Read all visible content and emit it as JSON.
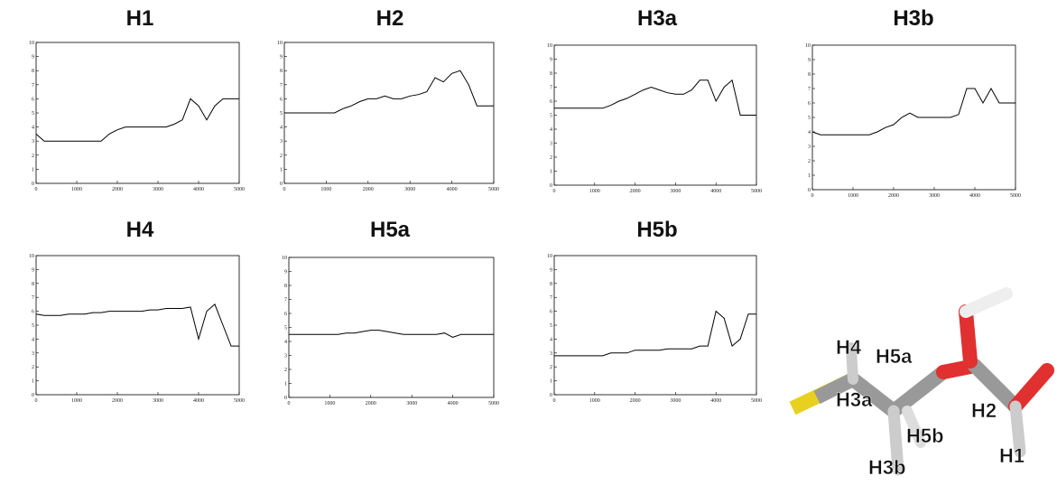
{
  "chart_data": [
    {
      "type": "line",
      "title": "H1",
      "x": [
        0,
        200,
        400,
        600,
        800,
        1000,
        1200,
        1400,
        1600,
        1800,
        2000,
        2200,
        2400,
        2600,
        2800,
        3000,
        3200,
        3400,
        3600,
        3800,
        4000,
        4200,
        4400,
        4600,
        4800,
        5000
      ],
      "values": [
        3.5,
        3,
        3,
        3,
        3,
        3,
        3,
        3,
        3,
        3.5,
        3.8,
        4,
        4,
        4,
        4,
        4,
        4,
        4.2,
        4.5,
        6,
        5.5,
        4.5,
        5.5,
        6,
        6,
        6
      ],
      "color": "#000000",
      "xlim": [
        0,
        5000
      ],
      "xticks": [
        0,
        1000,
        2000,
        3000,
        4000,
        5000
      ],
      "ylim": [
        0,
        10
      ],
      "yticks": [
        0,
        1,
        2,
        3,
        4,
        5,
        6,
        7,
        8,
        9,
        10
      ]
    },
    {
      "type": "line",
      "title": "H2",
      "x": [
        0,
        200,
        400,
        600,
        800,
        1000,
        1200,
        1400,
        1600,
        1800,
        2000,
        2200,
        2400,
        2600,
        2800,
        3000,
        3200,
        3400,
        3600,
        3800,
        4000,
        4200,
        4400,
        4600,
        4800,
        5000
      ],
      "values": [
        5,
        5,
        5,
        5,
        5,
        5,
        5,
        5.3,
        5.5,
        5.8,
        6,
        6,
        6.2,
        6,
        6,
        6.2,
        6.3,
        6.5,
        7.5,
        7.2,
        7.8,
        8,
        7,
        5.5,
        5.5,
        5.5
      ],
      "color": "#000000",
      "xlim": [
        0,
        5000
      ],
      "xticks": [
        0,
        1000,
        2000,
        3000,
        4000,
        5000
      ],
      "ylim": [
        0,
        10
      ],
      "yticks": [
        0,
        1,
        2,
        3,
        4,
        5,
        6,
        7,
        8,
        9,
        10
      ]
    },
    {
      "type": "line",
      "title": "H3a",
      "x": [
        0,
        200,
        400,
        600,
        800,
        1000,
        1200,
        1400,
        1600,
        1800,
        2000,
        2200,
        2400,
        2600,
        2800,
        3000,
        3200,
        3400,
        3600,
        3800,
        4000,
        4200,
        4400,
        4600,
        4800,
        5000
      ],
      "values": [
        5.5,
        5.5,
        5.5,
        5.5,
        5.5,
        5.5,
        5.5,
        5.7,
        6,
        6.2,
        6.5,
        6.8,
        7,
        6.8,
        6.6,
        6.5,
        6.5,
        6.8,
        7.5,
        7.5,
        6,
        7,
        7.5,
        5,
        5,
        5
      ],
      "color": "#000000",
      "xlim": [
        0,
        5000
      ],
      "xticks": [
        0,
        1000,
        2000,
        3000,
        4000,
        5000
      ],
      "ylim": [
        0,
        10
      ],
      "yticks": [
        0,
        1,
        2,
        3,
        4,
        5,
        6,
        7,
        8,
        9,
        10
      ]
    },
    {
      "type": "line",
      "title": "H3b",
      "x": [
        0,
        200,
        400,
        600,
        800,
        1000,
        1200,
        1400,
        1600,
        1800,
        2000,
        2200,
        2400,
        2600,
        2800,
        3000,
        3200,
        3400,
        3600,
        3800,
        4000,
        4200,
        4400,
        4600,
        4800,
        5000
      ],
      "values": [
        4,
        3.8,
        3.8,
        3.8,
        3.8,
        3.8,
        3.8,
        3.8,
        4,
        4.3,
        4.5,
        5,
        5.3,
        5,
        5,
        5,
        5,
        5,
        5.2,
        7,
        7,
        6,
        7,
        6,
        6,
        6
      ],
      "color": "#000000",
      "xlim": [
        0,
        5000
      ],
      "xticks": [
        0,
        1000,
        2000,
        3000,
        4000,
        5000
      ],
      "ylim": [
        0,
        10
      ],
      "yticks": [
        0,
        1,
        2,
        3,
        4,
        5,
        6,
        7,
        8,
        9,
        10
      ]
    },
    {
      "type": "line",
      "title": "H4",
      "x": [
        0,
        200,
        400,
        600,
        800,
        1000,
        1200,
        1400,
        1600,
        1800,
        2000,
        2200,
        2400,
        2600,
        2800,
        3000,
        3200,
        3400,
        3600,
        3800,
        4000,
        4200,
        4400,
        4600,
        4800,
        5000
      ],
      "values": [
        5.8,
        5.7,
        5.7,
        5.7,
        5.8,
        5.8,
        5.8,
        5.9,
        5.9,
        6,
        6,
        6,
        6,
        6,
        6.1,
        6.1,
        6.2,
        6.2,
        6.2,
        6.3,
        4,
        6,
        6.5,
        5,
        3.5,
        3.5
      ],
      "color": "#000000",
      "xlim": [
        0,
        5000
      ],
      "xticks": [
        0,
        1000,
        2000,
        3000,
        4000,
        5000
      ],
      "ylim": [
        0,
        10
      ],
      "yticks": [
        0,
        1,
        2,
        3,
        4,
        5,
        6,
        7,
        8,
        9,
        10
      ]
    },
    {
      "type": "line",
      "title": "H5a",
      "x": [
        0,
        200,
        400,
        600,
        800,
        1000,
        1200,
        1400,
        1600,
        1800,
        2000,
        2200,
        2400,
        2600,
        2800,
        3000,
        3200,
        3400,
        3600,
        3800,
        4000,
        4200,
        4400,
        4600,
        4800,
        5000
      ],
      "values": [
        4.5,
        4.5,
        4.5,
        4.5,
        4.5,
        4.5,
        4.5,
        4.6,
        4.6,
        4.7,
        4.8,
        4.8,
        4.7,
        4.6,
        4.5,
        4.5,
        4.5,
        4.5,
        4.5,
        4.6,
        4.3,
        4.5,
        4.5,
        4.5,
        4.5,
        4.5
      ],
      "color": "#000000",
      "xlim": [
        0,
        5000
      ],
      "xticks": [
        0,
        1000,
        2000,
        3000,
        4000,
        5000
      ],
      "ylim": [
        0,
        10
      ],
      "yticks": [
        0,
        1,
        2,
        3,
        4,
        5,
        6,
        7,
        8,
        9,
        10
      ]
    },
    {
      "type": "line",
      "title": "H5b",
      "x": [
        0,
        200,
        400,
        600,
        800,
        1000,
        1200,
        1400,
        1600,
        1800,
        2000,
        2200,
        2400,
        2600,
        2800,
        3000,
        3200,
        3400,
        3600,
        3800,
        4000,
        4200,
        4400,
        4600,
        4800,
        5000
      ],
      "values": [
        2.8,
        2.8,
        2.8,
        2.8,
        2.8,
        2.8,
        2.8,
        3,
        3,
        3,
        3.2,
        3.2,
        3.2,
        3.2,
        3.3,
        3.3,
        3.3,
        3.3,
        3.5,
        3.5,
        6,
        5.5,
        3.5,
        4,
        5.8,
        5.8
      ],
      "color": "#000000",
      "xlim": [
        0,
        5000
      ],
      "xticks": [
        0,
        1000,
        2000,
        3000,
        4000,
        5000
      ],
      "ylim": [
        0,
        10
      ],
      "yticks": [
        0,
        1,
        2,
        3,
        4,
        5,
        6,
        7,
        8,
        9,
        10
      ]
    }
  ],
  "molecule_labels": [
    "H4",
    "H5a",
    "H3a",
    "H2",
    "H5b",
    "H1",
    "H3b"
  ]
}
